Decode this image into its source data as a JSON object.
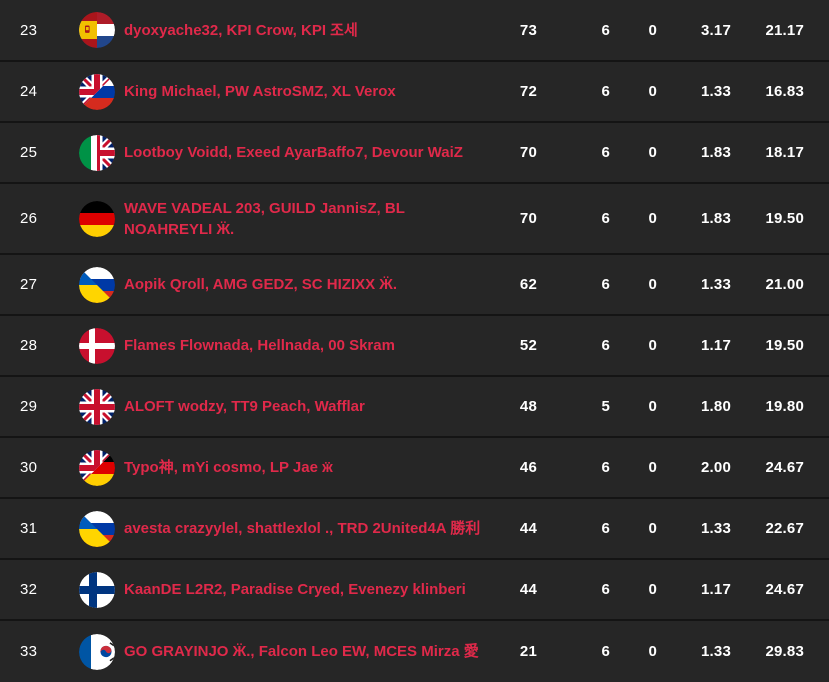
{
  "colors": {
    "row_background": "#262626",
    "separator": "#141414",
    "team_name_text": "#e0294a",
    "stat_text": "#ffffff"
  },
  "table": {
    "rows": [
      {
        "rank": "23",
        "flag": "es-nl",
        "flag_name": "spain-netherlands",
        "name_lines": [
          "dyoxyache32, KPI Crow, KPI 조세"
        ],
        "points": "73",
        "matches": "6",
        "wins": "0",
        "avg_kills": "3.17",
        "avg_place": "21.17"
      },
      {
        "rank": "24",
        "flag": "gb-ru",
        "flag_name": "uk-russia",
        "name_lines": [
          "King Michael, PW AstroSMZ, XL Verox"
        ],
        "points": "72",
        "matches": "6",
        "wins": "0",
        "avg_kills": "1.33",
        "avg_place": "16.83"
      },
      {
        "rank": "25",
        "flag": "it-gb",
        "flag_name": "italy-uk",
        "name_lines": [
          "Lootboy Voidd, Exeed AyarBaffo7, Devour WaiZ"
        ],
        "points": "70",
        "matches": "6",
        "wins": "0",
        "avg_kills": "1.83",
        "avg_place": "18.17"
      },
      {
        "rank": "26",
        "flag": "de",
        "flag_name": "germany",
        "tall": true,
        "name_lines": [
          "WAVE VADEAL 203, GUILD JannisZ, BL",
          "NOAHREYLI Ӝ."
        ],
        "points": "70",
        "matches": "6",
        "wins": "0",
        "avg_kills": "1.83",
        "avg_place": "19.50"
      },
      {
        "rank": "27",
        "flag": "ua-ru",
        "flag_name": "ukraine-russia",
        "name_lines": [
          "Aopik Qroll, AMG GEDZ, SC HIZIXX Ӝ."
        ],
        "points": "62",
        "matches": "6",
        "wins": "0",
        "avg_kills": "1.33",
        "avg_place": "21.00"
      },
      {
        "rank": "28",
        "flag": "dk",
        "flag_name": "denmark",
        "name_lines": [
          "Flames Flownada, Hellnada, 00 Skram"
        ],
        "points": "52",
        "matches": "6",
        "wins": "0",
        "avg_kills": "1.17",
        "avg_place": "19.50"
      },
      {
        "rank": "29",
        "flag": "gb",
        "flag_name": "uk",
        "name_lines": [
          "ALOFT wodzy, TT9 Peach, Wafflar"
        ],
        "points": "48",
        "matches": "5",
        "wins": "0",
        "avg_kills": "1.80",
        "avg_place": "19.80"
      },
      {
        "rank": "30",
        "flag": "gb-de",
        "flag_name": "uk-germany",
        "name_lines": [
          "Typo神, mYi cosmo, LP Jae ӝ"
        ],
        "points": "46",
        "matches": "6",
        "wins": "0",
        "avg_kills": "2.00",
        "avg_place": "24.67"
      },
      {
        "rank": "31",
        "flag": "ua-ru",
        "flag_name": "ukraine-russia",
        "name_lines": [
          "avesta crazyylel, shattlexlol ., TRD 2United4A 勝利"
        ],
        "points": "44",
        "matches": "6",
        "wins": "0",
        "avg_kills": "1.33",
        "avg_place": "22.67"
      },
      {
        "rank": "32",
        "flag": "fi",
        "flag_name": "finland",
        "name_lines": [
          "KaanDE L2R2, Paradise Cryed, Evenezy klinberi"
        ],
        "points": "44",
        "matches": "6",
        "wins": "0",
        "avg_kills": "1.17",
        "avg_place": "24.67"
      },
      {
        "rank": "33",
        "flag": "fr-kr",
        "flag_name": "france-southkorea",
        "name_lines": [
          "GO GRAYINJO Ӝ., Falcon Leo EW, MCES Mirza 愛"
        ],
        "points": "21",
        "matches": "6",
        "wins": "0",
        "avg_kills": "1.33",
        "avg_place": "29.83"
      }
    ]
  }
}
